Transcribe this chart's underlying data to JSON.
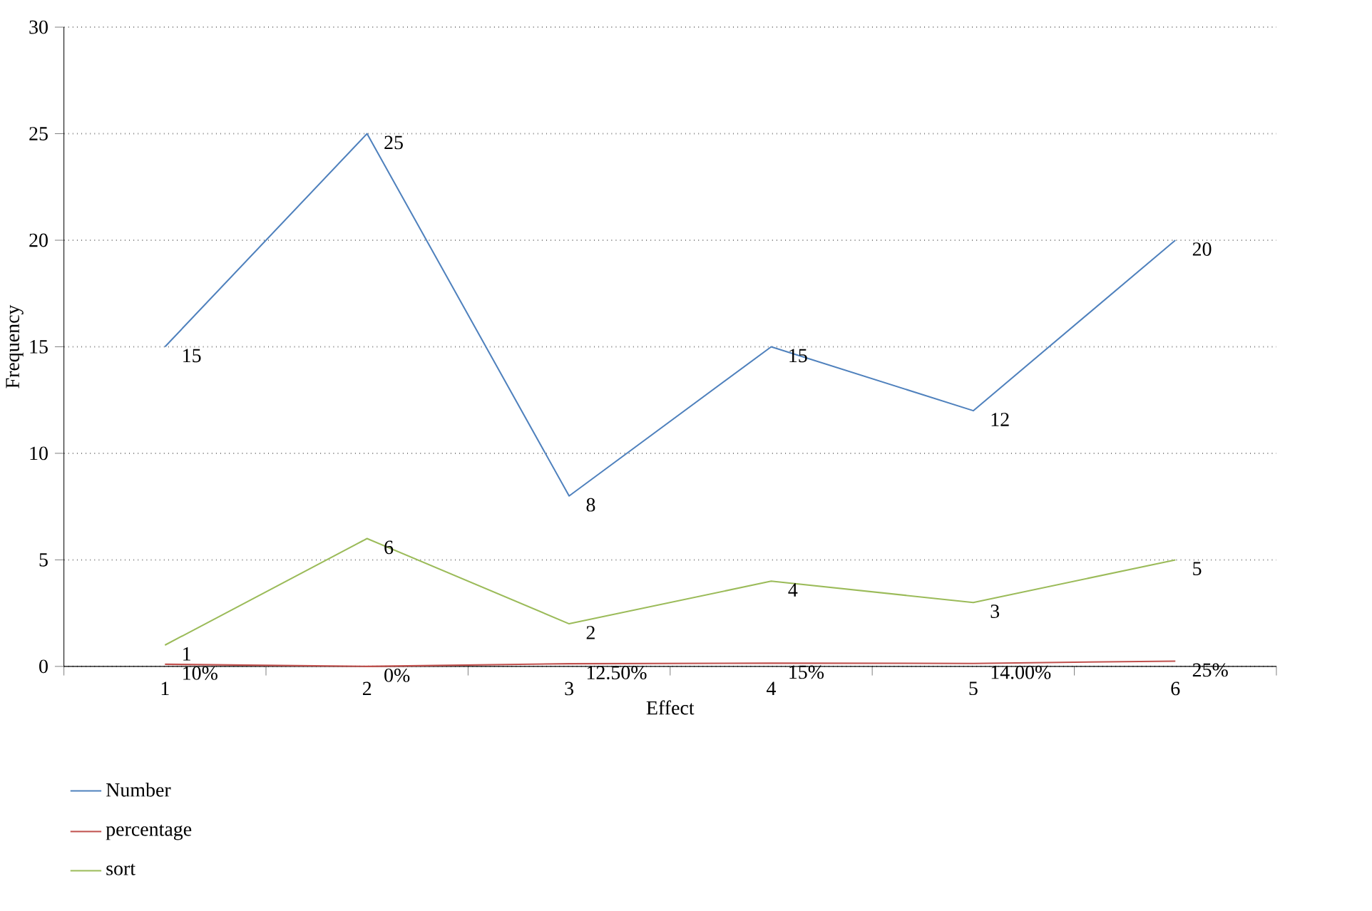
{
  "chart_data": {
    "type": "line",
    "xlabel": "Effect",
    "ylabel": "Frequency",
    "categories": [
      "1",
      "2",
      "3",
      "4",
      "5",
      "6"
    ],
    "series": [
      {
        "name": "Number",
        "color": "#4f81bd",
        "values": [
          15,
          25,
          8,
          15,
          12,
          20
        ],
        "value_labels": [
          "15",
          "25",
          "8",
          "15",
          "12",
          "20"
        ]
      },
      {
        "name": "percentage",
        "color": "#c0504d",
        "values": [
          0.1,
          0,
          0.125,
          0.15,
          0.14,
          0.25
        ],
        "value_labels": [
          "10%",
          "0%",
          "12.50%",
          "15%",
          "14.00%",
          "25%"
        ]
      },
      {
        "name": "sort",
        "color": "#9bbb59",
        "values": [
          1,
          6,
          2,
          4,
          3,
          5
        ],
        "value_labels": [
          "1",
          "6",
          "2",
          "4",
          "3",
          "5"
        ]
      }
    ],
    "ylim": [
      0,
      30
    ],
    "yticks": [
      0,
      5,
      10,
      15,
      20,
      25,
      30
    ],
    "grid": "y",
    "legend": "bottom",
    "marker": "none",
    "line_style": "solid"
  }
}
